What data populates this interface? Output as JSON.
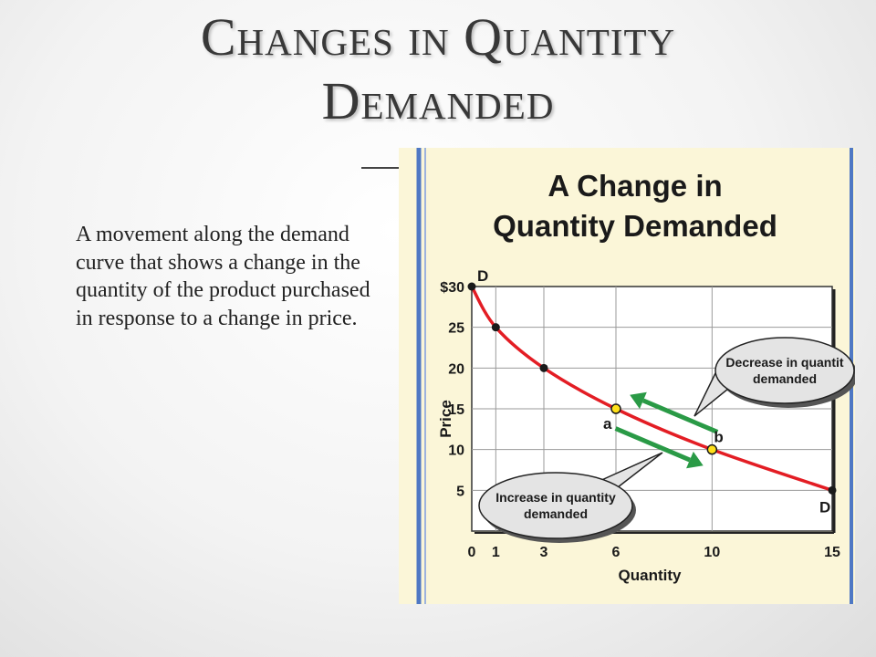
{
  "slide": {
    "title_line_1": "Changes in Quantity",
    "title_line_2": "Demanded",
    "body": "A movement along the demand curve that shows a change in the quantity of the product purchased in response to a change in price."
  },
  "colors": {
    "curve": "#e31d24",
    "arrow": "#2a9a46",
    "panel": "#fbf6d8",
    "border": "#4f78c4",
    "point_highlight": "#ffe01a"
  },
  "chart_data": {
    "type": "line",
    "title_line_1": "A Change in",
    "title_line_2": "Quantity Demanded",
    "xlabel": "Quantity",
    "ylabel": "Price",
    "xlim": [
      0,
      15
    ],
    "ylim": [
      0,
      30
    ],
    "x_ticks": [
      "0",
      "1",
      "3",
      "6",
      "10",
      "15"
    ],
    "y_ticks": [
      "5",
      "10",
      "15",
      "20",
      "25",
      "$30"
    ],
    "grid": true,
    "series": [
      {
        "name": "D",
        "points": [
          {
            "x": 0,
            "y": 30
          },
          {
            "x": 1,
            "y": 25
          },
          {
            "x": 3,
            "y": 20
          },
          {
            "x": 6,
            "y": 15
          },
          {
            "x": 10,
            "y": 10
          },
          {
            "x": 15,
            "y": 5
          }
        ]
      }
    ],
    "curve_labels": {
      "start": "D",
      "end": "D"
    },
    "highlighted_points": [
      {
        "label": "a",
        "x": 6,
        "y": 15
      },
      {
        "label": "b",
        "x": 10,
        "y": 10
      }
    ],
    "annotations": [
      {
        "id": "decrease",
        "text_line_1": "Decrease in quantit",
        "text_line_2": "demanded"
      },
      {
        "id": "increase",
        "text_line_1": "Increase in quantity",
        "text_line_2": "demanded"
      }
    ]
  }
}
